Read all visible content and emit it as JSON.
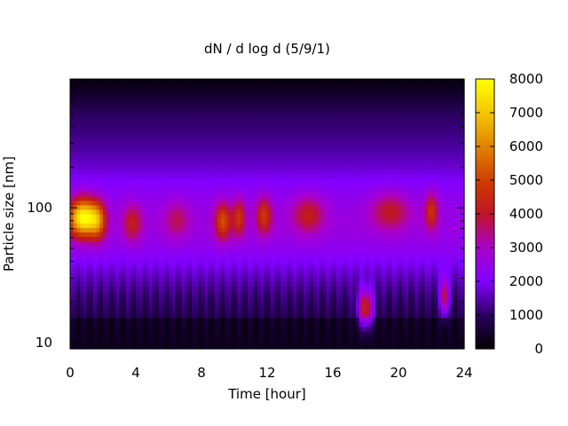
{
  "chart_data": {
    "type": "heatmap",
    "title": "dN / d log d (5/9/1)",
    "xlabel": "Time [hour]",
    "ylabel": "Particle size [nm]",
    "xlim": [
      0,
      24
    ],
    "ylim": [
      9,
      900
    ],
    "y_scale": "log",
    "x_ticks": [
      0,
      4,
      8,
      12,
      16,
      20,
      24
    ],
    "y_ticks": [
      10,
      100
    ],
    "colorbar": {
      "range": [
        0,
        8000
      ],
      "ticks": [
        0,
        1000,
        2000,
        3000,
        4000,
        5000,
        6000,
        7000,
        8000
      ],
      "palette": "black-purple-red-yellow"
    },
    "features": [
      {
        "hour": 0.8,
        "diameter_nm": 85,
        "intensity": 7300,
        "width_hours": 0.9
      },
      {
        "hour": 1.7,
        "diameter_nm": 80,
        "intensity": 4200,
        "width_hours": 0.5
      },
      {
        "hour": 3.8,
        "diameter_nm": 78,
        "intensity": 3500,
        "width_hours": 0.6
      },
      {
        "hour": 6.5,
        "diameter_nm": 82,
        "intensity": 3000,
        "width_hours": 0.8
      },
      {
        "hour": 9.3,
        "diameter_nm": 80,
        "intensity": 4500,
        "width_hours": 0.5
      },
      {
        "hour": 10.3,
        "diameter_nm": 85,
        "intensity": 4000,
        "width_hours": 0.4
      },
      {
        "hour": 11.8,
        "diameter_nm": 88,
        "intensity": 4100,
        "width_hours": 0.5
      },
      {
        "hour": 14.5,
        "diameter_nm": 90,
        "intensity": 3500,
        "width_hours": 1.0
      },
      {
        "hour": 18.0,
        "diameter_nm": 18,
        "intensity": 5300,
        "width_hours": 0.45
      },
      {
        "hour": 19.5,
        "diameter_nm": 95,
        "intensity": 3400,
        "width_hours": 1.2
      },
      {
        "hour": 22.0,
        "diameter_nm": 95,
        "intensity": 4000,
        "width_hours": 0.4
      },
      {
        "hour": 22.8,
        "diameter_nm": 22,
        "intensity": 4900,
        "width_hours": 0.25
      }
    ]
  }
}
